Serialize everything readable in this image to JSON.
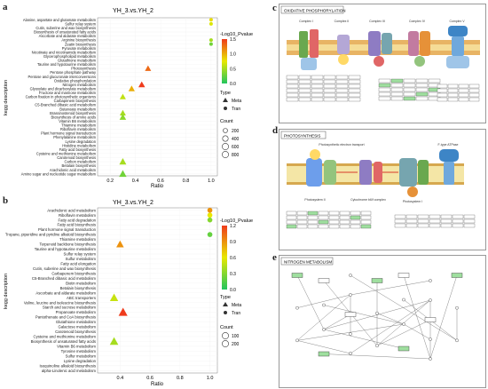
{
  "panels": {
    "a": "a",
    "b": "b",
    "c": "c",
    "d": "d",
    "e": "e"
  },
  "chart_a": {
    "title": "YH_3.vs.YH_2",
    "ylabel": "kegg description",
    "xlabel": "Ratio",
    "xticks": [
      "0.2",
      "0.4",
      "0.6",
      "0.8",
      "1.0"
    ],
    "legend_pvalue_title": "-Log10_Pvalue",
    "legend_pvalue_ticks": [
      "1.5",
      "1.0",
      "0.5",
      "0.0"
    ],
    "legend_type_title": "Type",
    "legend_type_items": [
      "Meta",
      "Tran"
    ],
    "legend_count_title": "Count",
    "legend_count_items": [
      "200",
      "400",
      "600",
      "800"
    ]
  },
  "chart_b": {
    "title": "YH_3.vs.YH_2",
    "ylabel": "kegg description",
    "xlabel": "Ratio",
    "xticks": [
      "0.4",
      "0.6",
      "0.8",
      "1.0"
    ],
    "legend_pvalue_title": "-Log10_Pvalue",
    "legend_pvalue_ticks": [
      "1.2",
      "0.9",
      "0.6",
      "0.3",
      "0.0"
    ],
    "legend_type_title": "Type",
    "legend_type_items": [
      "Meta",
      "Tran"
    ],
    "legend_count_title": "Count",
    "legend_count_items": [
      "100",
      "200"
    ]
  },
  "chart_data": [
    {
      "type": "scatter",
      "title": "YH_3.vs.YH_2",
      "xlabel": "Ratio",
      "ylabel": "kegg description",
      "xlim": [
        0.1,
        1.05
      ],
      "categories": [
        "Alanine, aspartate and glutamate metabolism",
        "Sulfur relay system",
        "Cutin, suberine and wax biosynthesis",
        "Biosynthesis of unsaturated fatty acids",
        "Ascorbate and aldarate metabolism",
        "Arginine biosynthesis",
        "Zeatin biosynthesis",
        "Pyruvate metabolism",
        "Nicotinate and nicotinamide metabolism",
        "Glycerophospholipid metabolism",
        "Glutathione metabolism",
        "Taurine and hypotaurine metabolism",
        "Photosynthesis",
        "Pentose phosphate pathway",
        "Pentose and glucuronate interconversions",
        "Oxidative phosphorylation",
        "Nitrogen metabolism",
        "Glyoxylate and dicarboxylate metabolism",
        "Fructose and mannose metabolism",
        "Carbon fixation in photosynthetic organisms",
        "Carbapenem biosynthesis",
        "C5-Branched dibasic acid metabolism",
        "Butanoate metabolism",
        "Brassinosteroid biosynthesis",
        "Biosynthesis of amino acids",
        "Vitamin B6 metabolism",
        "Thiamine metabolism",
        "Riboflavin metabolism",
        "Plant hormone signal transduction",
        "Phenylalanine metabolism",
        "Lysine degradation",
        "Histidine metabolism",
        "Fatty acid biosynthesis",
        "Cysteine and methionine metabolism",
        "Carotenoid biosynthesis",
        "Carbon metabolism",
        "Betalain biosynthesis",
        "Arachidonic acid metabolism",
        "Amino sugar and nucleotide sugar metabolism"
      ],
      "series": [
        {
          "name": "Meta",
          "points": [
            {
              "category": "Photosynthesis",
              "x": 0.5,
              "count": 500,
              "pvalue": 1.3
            },
            {
              "category": "Nitrogen metabolism",
              "x": 0.45,
              "count": 600,
              "pvalue": 1.6
            },
            {
              "category": "Glyoxylate and dicarboxylate metabolism",
              "x": 0.37,
              "count": 550,
              "pvalue": 1.0
            },
            {
              "category": "Carbon fixation in photosynthetic organisms",
              "x": 0.3,
              "count": 500,
              "pvalue": 0.6
            },
            {
              "category": "Brassinosteroid biosynthesis",
              "x": 0.3,
              "count": 500,
              "pvalue": 0.5
            },
            {
              "category": "Biosynthesis of amino acids",
              "x": 0.3,
              "count": 600,
              "pvalue": 0.4
            },
            {
              "category": "Carbon metabolism",
              "x": 0.3,
              "count": 700,
              "pvalue": 0.5
            },
            {
              "category": "Amino sugar and nucleotide sugar metabolism",
              "x": 0.3,
              "count": 800,
              "pvalue": 0.3
            }
          ]
        },
        {
          "name": "Tran",
          "points": [
            {
              "category": "Alanine, aspartate and glutamate metabolism",
              "x": 1.0,
              "count": 100,
              "pvalue": 0.8
            },
            {
              "category": "Sulfur relay system",
              "x": 1.0,
              "count": 100,
              "pvalue": 0.7
            },
            {
              "category": "Arginine biosynthesis",
              "x": 1.0,
              "count": 100,
              "pvalue": 0.5
            },
            {
              "category": "Zeatin biosynthesis",
              "x": 1.0,
              "count": 100,
              "pvalue": 0.3
            }
          ]
        }
      ],
      "legend": {
        "pvalue_range": [
          0.0,
          1.5
        ],
        "count_levels": [
          200,
          400,
          600,
          800
        ],
        "types": [
          "Meta",
          "Tran"
        ],
        "position": "right"
      },
      "colors": {
        "low": "#22c55e",
        "mid": "#e8e800",
        "high": "#ef3b1c"
      }
    },
    {
      "type": "scatter",
      "title": "YH_3.vs.YH_2",
      "xlabel": "Ratio",
      "ylabel": "kegg description",
      "xlim": [
        0.25,
        1.05
      ],
      "categories": [
        "Arachidonic acid metabolism",
        "Riboflavin metabolism",
        "Fatty acid degradation",
        "Fatty acid biosynthesis",
        "Plant hormone signal transduction",
        "Tropane, piperidine and pyridine alkaloid biosynthesis",
        "Thiamine metabolism",
        "Terpenoid backbone biosynthesis",
        "Taurine and hypotaurine metabolism",
        "Sulfur relay system",
        "Sulfur metabolism",
        "Fatty acid elongation",
        "Cutin, suberine and wax biosynthesis",
        "Carbapenem biosynthesis",
        "C5-Branched dibasic acid metabolism",
        "Biotin metabolism",
        "Betalain biosynthesis",
        "Ascorbate and aldarate metabolism",
        "ABC transporters",
        "Valine, leucine and isoleucine biosynthesis",
        "Starch and sucrose metabolism",
        "Propanoate metabolism",
        "Pantothenate and CoA biosynthesis",
        "Glutathione metabolism",
        "Galactose metabolism",
        "Carotenoid biosynthesis",
        "Cysteine and methionine metabolism",
        "Biosynthesis of unsaturated fatty acids",
        "Vitamin B6 metabolism",
        "Tyrosine metabolism",
        "Sulfur metabolism",
        "Lysine degradation",
        "Isoquinoline alkaloid biosynthesis",
        "alpha-Linolenic acid metabolism"
      ],
      "series": [
        {
          "name": "Meta",
          "points": [
            {
              "category": "Terpenoid backbone biosynthesis",
              "x": 0.4,
              "count": 120,
              "pvalue": 0.9
            },
            {
              "category": "Propanoate metabolism",
              "x": 0.42,
              "count": 180,
              "pvalue": 1.2
            },
            {
              "category": "ABC transporters",
              "x": 0.36,
              "count": 150,
              "pvalue": 0.5
            },
            {
              "category": "Biosynthesis of unsaturated fatty acids",
              "x": 0.36,
              "count": 160,
              "pvalue": 0.4
            }
          ]
        },
        {
          "name": "Tran",
          "points": [
            {
              "category": "Arachidonic acid metabolism",
              "x": 1.0,
              "count": 40,
              "pvalue": 0.9
            },
            {
              "category": "Riboflavin metabolism",
              "x": 1.0,
              "count": 40,
              "pvalue": 0.6
            },
            {
              "category": "Fatty acid degradation",
              "x": 1.0,
              "count": 40,
              "pvalue": 0.3
            },
            {
              "category": "Tropane, piperidine and pyridine alkaloid biosynthesis",
              "x": 1.0,
              "count": 40,
              "pvalue": 0.2
            }
          ]
        }
      ],
      "legend": {
        "pvalue_range": [
          0.0,
          1.2
        ],
        "count_levels": [
          100,
          200
        ],
        "types": [
          "Meta",
          "Tran"
        ],
        "position": "right"
      },
      "colors": {
        "low": "#22c55e",
        "mid": "#e8e800",
        "high": "#ef3b1c"
      }
    }
  ],
  "pathway_c": {
    "header": "OXIDATIVE PHOSPHORYLATION",
    "complexes": [
      "Complex I",
      "Complex II",
      "Complex III",
      "Complex IV",
      "Complex V"
    ]
  },
  "pathway_d": {
    "header": "PHOTOSYNTHESIS",
    "labels": [
      "Photosystem II",
      "Cytochrome b6/f complex",
      "Photosystem I",
      "Photosynthetic electron transport",
      "F-type ATPase"
    ]
  },
  "pathway_e": {
    "header": "NITROGEN METABOLISM"
  }
}
